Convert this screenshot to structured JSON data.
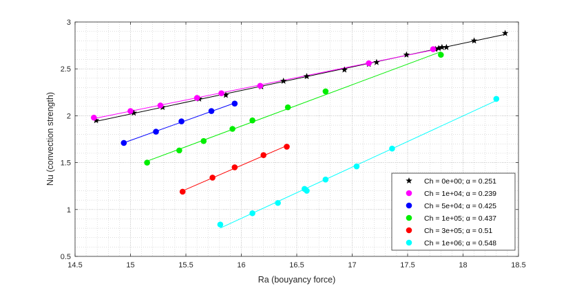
{
  "chart_data": {
    "type": "scatter",
    "xlabel": "Ra (bouyancy force)",
    "ylabel": "Nu (convection strength)",
    "xlim": [
      14.5,
      18.5
    ],
    "ylim": [
      0.5,
      3
    ],
    "xticks": [
      "14.5",
      "15",
      "15.5",
      "16",
      "16.5",
      "17",
      "17.5",
      "18",
      "18.5"
    ],
    "yticks": [
      "0.5",
      "1",
      "1.5",
      "2",
      "2.5",
      "3"
    ],
    "grid": "minor dotted",
    "legend_position": "bottom-right",
    "series": [
      {
        "name": "Ch = 0e+00; α = 0.251",
        "color": "#000000",
        "marker": "star",
        "fit_x": [
          14.68,
          18.38
        ],
        "x": [
          14.69,
          15.03,
          15.29,
          15.62,
          15.86,
          16.18,
          16.38,
          16.59,
          16.93,
          17.15,
          17.22,
          17.49,
          17.75,
          17.78,
          17.81,
          17.85,
          18.1,
          18.38
        ],
        "y": [
          1.95,
          2.03,
          2.09,
          2.18,
          2.22,
          2.31,
          2.37,
          2.42,
          2.49,
          2.55,
          2.57,
          2.65,
          2.71,
          2.72,
          2.73,
          2.73,
          2.8,
          2.88
        ]
      },
      {
        "name": "Ch = 1e+04; α = 0.239",
        "color": "#ff00ff",
        "marker": "circle",
        "fit_x": [
          14.67,
          17.78
        ],
        "x": [
          14.67,
          15.0,
          15.27,
          15.6,
          15.82,
          16.17,
          17.15,
          17.73
        ],
        "y": [
          1.98,
          2.05,
          2.11,
          2.19,
          2.24,
          2.32,
          2.56,
          2.71
        ]
      },
      {
        "name": "Ch = 5e+04; α = 0.425",
        "color": "#0000ff",
        "marker": "circle",
        "fit_x": [
          14.94,
          15.94
        ],
        "x": [
          14.94,
          15.23,
          15.46,
          15.73,
          15.94
        ],
        "y": [
          1.71,
          1.83,
          1.94,
          2.05,
          2.13
        ]
      },
      {
        "name": "Ch = 1e+05; α = 0.437",
        "color": "#00ee00",
        "marker": "circle",
        "fit_x": [
          15.15,
          17.8
        ],
        "x": [
          15.15,
          15.44,
          15.66,
          15.92,
          16.1,
          16.42,
          16.76,
          17.8
        ],
        "y": [
          1.5,
          1.63,
          1.73,
          1.86,
          1.95,
          2.09,
          2.26,
          2.65
        ]
      },
      {
        "name": "Ch = 3e+05; α = 0.51",
        "color": "#ff0000",
        "marker": "circle",
        "fit_x": [
          15.47,
          16.41
        ],
        "x": [
          15.47,
          15.74,
          15.94,
          16.2,
          16.41
        ],
        "y": [
          1.19,
          1.34,
          1.45,
          1.58,
          1.67
        ]
      },
      {
        "name": "Ch = 1e+06; α = 0.548",
        "color": "#00ffff",
        "marker": "circle",
        "fit_x": [
          15.81,
          18.3
        ],
        "x": [
          15.81,
          16.1,
          16.33,
          16.57,
          16.59,
          16.76,
          17.04,
          17.36,
          18.3
        ],
        "y": [
          0.84,
          0.96,
          1.07,
          1.22,
          1.2,
          1.32,
          1.46,
          1.65,
          2.18
        ]
      }
    ]
  }
}
